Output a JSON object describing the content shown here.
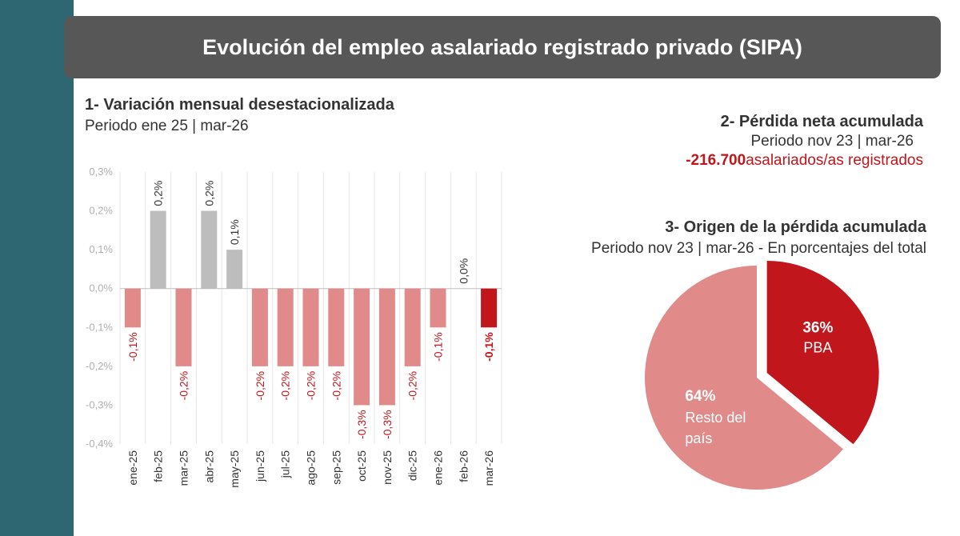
{
  "header": {
    "title": "Evolución del empleo asalariado registrado privado (SIPA)"
  },
  "section1": {
    "title": "1- Variación mensual desestacionalizada",
    "period": "Periodo ene 25 | mar-26"
  },
  "section2": {
    "title": "2- Pérdida neta acumulada",
    "period": "Periodo nov 23 | mar-26",
    "value": "-216.700",
    "value_label": "asalariados/as registrados"
  },
  "section3": {
    "title": "3- Origen de la pérdida acumulada",
    "period": "Periodo nov 23 | mar-26 - En porcentajes del total"
  },
  "colors": {
    "positive": "#bdbdbd",
    "negative": "#e08a89",
    "highlight": "#c0161c",
    "header_bg": "#575757",
    "side_band": "#2e6672"
  },
  "chart_data": [
    {
      "type": "bar",
      "categories": [
        "ene-25",
        "feb-25",
        "mar-25",
        "abr-25",
        "may-25",
        "jun-25",
        "jul-25",
        "ago-25",
        "sep-25",
        "oct-25",
        "nov-25",
        "dic-25",
        "ene-26",
        "feb-26",
        "mar-26"
      ],
      "values": [
        -0.1,
        0.2,
        -0.2,
        0.2,
        0.1,
        -0.2,
        -0.2,
        -0.2,
        -0.2,
        -0.3,
        -0.3,
        -0.2,
        -0.1,
        0.0,
        -0.1
      ],
      "data_labels": [
        "-0,1%",
        "0,2%",
        "-0,2%",
        "0,2%",
        "0,1%",
        "-0,2%",
        "-0,2%",
        "-0,2%",
        "-0,2%",
        "-0,3%",
        "-0,3%",
        "-0,2%",
        "-0,1%",
        "0,0%",
        "-0,1%"
      ],
      "highlight_index": 14,
      "y_ticks": [
        0.3,
        0.2,
        0.1,
        0.0,
        -0.1,
        -0.2,
        -0.3,
        -0.4
      ],
      "y_tick_labels": [
        "0,3%",
        "0,2%",
        "0,1%",
        "0,0%",
        "-0,1%",
        "-0,2%",
        "-0,3%",
        "-0,4%"
      ],
      "ylim": [
        -0.4,
        0.3
      ],
      "grid": "vertical"
    },
    {
      "type": "pie",
      "slices": [
        {
          "pct_label": "36%",
          "label": "PBA",
          "value": 36,
          "color": "#c0161c",
          "exploded": true
        },
        {
          "pct_label": "64%",
          "label_lines": [
            "Resto del",
            "país"
          ],
          "value": 64,
          "color": "#e08a89",
          "exploded": false
        }
      ]
    }
  ]
}
